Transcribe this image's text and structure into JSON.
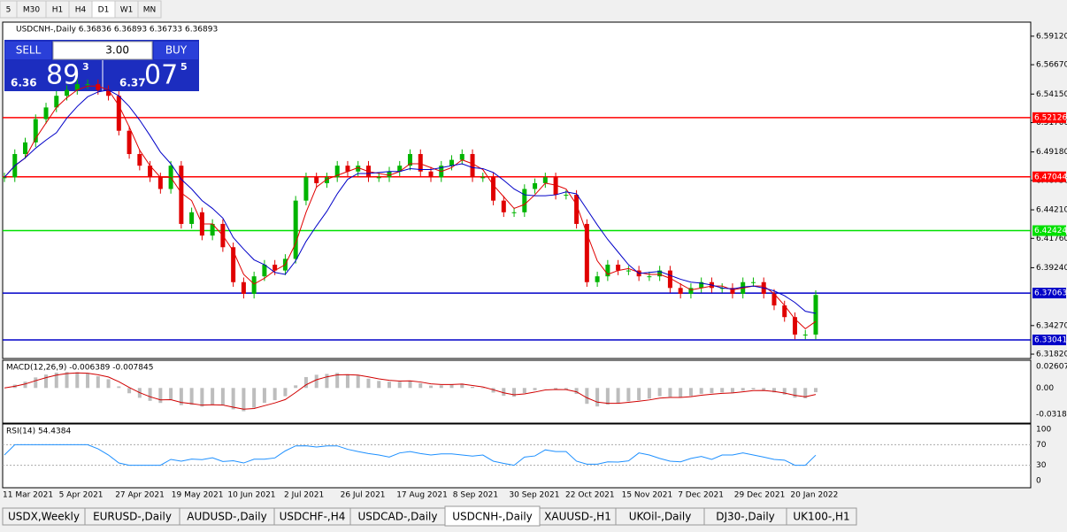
{
  "toolbar": {
    "timeframes": [
      "5",
      "M30",
      "H1",
      "H4",
      "D1",
      "W1",
      "MN"
    ]
  },
  "chart": {
    "info": "USDCNH-,Daily 6.36836 6.36893 6.36733 6.36893",
    "closes": [
      6.47,
      6.49,
      6.5,
      6.52,
      6.53,
      6.54,
      6.545,
      6.55,
      6.55,
      6.545,
      6.54,
      6.51,
      6.49,
      6.48,
      6.47,
      6.46,
      6.48,
      6.43,
      6.44,
      6.42,
      6.43,
      6.41,
      6.38,
      6.37,
      6.385,
      6.395,
      6.39,
      6.4,
      6.45,
      6.47,
      6.465,
      6.47,
      6.48,
      6.475,
      6.48,
      6.47,
      6.47,
      6.475,
      6.48,
      6.49,
      6.475,
      6.47,
      6.48,
      6.485,
      6.49,
      6.47,
      6.47,
      6.45,
      6.44,
      6.44,
      6.46,
      6.465,
      6.47,
      6.455,
      6.455,
      6.43,
      6.38,
      6.385,
      6.395,
      6.39,
      6.39,
      6.385,
      6.385,
      6.39,
      6.375,
      6.37,
      6.375,
      6.38,
      6.375,
      6.375,
      6.37,
      6.38,
      6.38,
      6.37,
      6.36,
      6.35,
      6.335,
      6.335,
      6.369
    ],
    "ylim": [
      6.3152,
      6.6025
    ],
    "yticks": [
      {
        "value": 6.5912,
        "label": "6.59120"
      },
      {
        "value": 6.5667,
        "label": "6.56670"
      },
      {
        "value": 6.5415,
        "label": "6.54150"
      },
      {
        "value": 6.517,
        "label": "6.51700"
      },
      {
        "value": 6.4918,
        "label": "6.49180"
      },
      {
        "value": 6.4673,
        "label": "6.46730"
      },
      {
        "value": 6.4421,
        "label": "6.44210"
      },
      {
        "value": 6.4176,
        "label": "6.41760"
      },
      {
        "value": 6.3924,
        "label": "6.39240"
      },
      {
        "value": 6.3427,
        "label": "6.34270"
      },
      {
        "value": 6.3182,
        "label": "6.31820"
      }
    ],
    "levels": [
      {
        "value": 6.52126,
        "label": "6.52126",
        "color": "#ff0000"
      },
      {
        "value": 6.47044,
        "label": "6.47044",
        "color": "#ff0000"
      },
      {
        "value": 6.42424,
        "label": "6.42424",
        "color": "#00e000"
      },
      {
        "value": 6.37063,
        "label": "6.37063",
        "color": "#0000c8"
      },
      {
        "value": 6.33041,
        "label": "6.33041",
        "color": "#0000c8"
      }
    ],
    "dates": [
      "11 Mar 2021",
      "5 Apr 2021",
      "27 Apr 2021",
      "19 May 2021",
      "10 Jun 2021",
      "2 Jul 2021",
      "26 Jul 2021",
      "17 Aug 2021",
      "8 Sep 2021",
      "30 Sep 2021",
      "22 Oct 2021",
      "15 Nov 2021",
      "7 Dec 2021",
      "29 Dec 2021",
      "20 Jan 2022"
    ]
  },
  "trade": {
    "sell": "SELL",
    "buy": "BUY",
    "lots": "3.00",
    "sell_price": {
      "prefix": "6.36",
      "big": "89",
      "sup": "3"
    },
    "buy_price": {
      "prefix": "6.37",
      "big": "07",
      "sup": "5"
    }
  },
  "macd": {
    "label": "MACD(12,26,9) -0.006389 -0.007845",
    "ylim": [
      -0.0402,
      0.0323
    ],
    "yticks": [
      {
        "value": 0.02607,
        "label": "0.02607"
      },
      {
        "value": 0,
        "label": "0.00"
      },
      {
        "value": -0.03187,
        "label": "-0.03187"
      }
    ]
  },
  "rsi": {
    "label": "RSI(14) 54.4384",
    "ylim": [
      -12,
      108.6
    ],
    "yticks": [
      100,
      70,
      30,
      0
    ]
  },
  "tabs": {
    "items": [
      "USDX,Weekly",
      "EURUSD-,Daily",
      "AUDUSD-,Daily",
      "USDCHF-,H4",
      "USDCAD-,Daily",
      "USDCNH-,Daily",
      "XAUUSD-,H1",
      "UKOil-,Daily",
      "DJ30-,Daily",
      "UK100-,H1"
    ],
    "active": 5
  }
}
